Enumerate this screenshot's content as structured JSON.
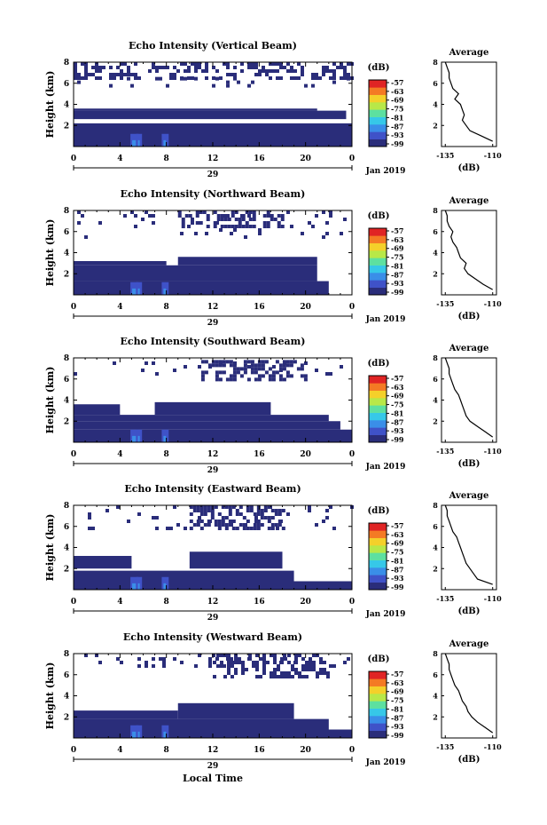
{
  "figure": {
    "xlabel": "Local Time",
    "date_label": "29",
    "month_label": "Jan 2019",
    "x_ticks": [
      "0",
      "4",
      "8",
      "12",
      "16",
      "20",
      "0"
    ],
    "y_ticks": [
      "2",
      "4",
      "6",
      "8"
    ],
    "ylabel": "Height (km)",
    "colorbar_unit": "(dB)",
    "colorbar_ticks": [
      "-57",
      "-63",
      "-69",
      "-75",
      "-81",
      "-87",
      "-93",
      "-99"
    ],
    "average_title": "Average",
    "average_xlabel": "(dB)",
    "average_x_ticks": [
      "-135",
      "-110"
    ],
    "average_y_ticks": [
      "2",
      "4",
      "6",
      "8"
    ],
    "colormap": [
      "#2a2d7a",
      "#3f52c8",
      "#3a8ee8",
      "#36c8e8",
      "#5de0a0",
      "#b8e848",
      "#f4d02a",
      "#f47a24",
      "#e02424"
    ]
  },
  "chart_data": [
    {
      "type": "heatmap",
      "title": "Echo Intensity (Vertical Beam)",
      "x_range_hours": [
        0,
        24
      ],
      "ylim_km": [
        0,
        8
      ],
      "clim_db": [
        -99,
        -57
      ],
      "layers": [
        {
          "kind": "fill",
          "x": [
            0,
            24
          ],
          "y": [
            0,
            1.6
          ],
          "db": -97
        },
        {
          "kind": "fill",
          "x": [
            0,
            24
          ],
          "y": [
            1.6,
            2.2
          ],
          "db": -99
        },
        {
          "kind": "fill",
          "x": [
            0,
            23.5
          ],
          "y": [
            2.6,
            3.4
          ],
          "db": -99
        },
        {
          "kind": "fill",
          "x": [
            0,
            21
          ],
          "y": [
            3.4,
            3.6
          ],
          "db": -99
        },
        {
          "kind": "speckle",
          "x": [
            0,
            24
          ],
          "y": [
            6.6,
            8.0
          ],
          "density": 0.42
        },
        {
          "kind": "speckle",
          "x": [
            0,
            24
          ],
          "y": [
            5.6,
            6.6
          ],
          "density": 0.1
        }
      ],
      "profile": {
        "title": "Average",
        "height_km": [
          0.5,
          1.0,
          1.5,
          2.0,
          2.5,
          3.0,
          3.5,
          4.0,
          4.5,
          5.0,
          5.5,
          6.0,
          6.5,
          7.0,
          7.5,
          8.0
        ],
        "db": [
          -110,
          -116,
          -122,
          -124,
          -126,
          -125,
          -126,
          -127,
          -130,
          -128,
          -131,
          -132,
          -133,
          -133,
          -134,
          -135
        ],
        "xlim_db": [
          -137,
          -108
        ]
      }
    },
    {
      "type": "heatmap",
      "title": "Echo Intensity (Northward Beam)",
      "x_range_hours": [
        0,
        24
      ],
      "ylim_km": [
        0,
        8
      ],
      "clim_db": [
        -99,
        -57
      ],
      "layers": [
        {
          "kind": "fill",
          "x": [
            0,
            22
          ],
          "y": [
            0,
            1.3
          ],
          "db": -97
        },
        {
          "kind": "fill",
          "x": [
            0,
            21
          ],
          "y": [
            1.3,
            2.8
          ],
          "db": -99
        },
        {
          "kind": "fill",
          "x": [
            0,
            8
          ],
          "y": [
            2.8,
            3.2
          ],
          "db": -99
        },
        {
          "kind": "fill",
          "x": [
            9,
            21
          ],
          "y": [
            2.8,
            3.6
          ],
          "db": -99
        },
        {
          "kind": "speckle",
          "x": [
            9,
            18
          ],
          "y": [
            6.4,
            8.0
          ],
          "density": 0.45
        },
        {
          "kind": "speckle",
          "x": [
            0,
            24
          ],
          "y": [
            5.4,
            8.0
          ],
          "density": 0.05
        }
      ],
      "profile": {
        "title": "Average",
        "height_km": [
          0.5,
          1.0,
          1.5,
          2.0,
          2.5,
          3.0,
          3.5,
          4.0,
          4.5,
          5.0,
          5.5,
          6.0,
          6.5,
          7.0,
          7.5,
          8.0
        ],
        "db": [
          -110,
          -115,
          -119,
          -123,
          -125,
          -124,
          -127,
          -128,
          -129,
          -131,
          -132,
          -131,
          -133,
          -134,
          -134,
          -135
        ],
        "xlim_db": [
          -137,
          -108
        ]
      }
    },
    {
      "type": "heatmap",
      "title": "Echo Intensity (Southward Beam)",
      "x_range_hours": [
        0,
        24
      ],
      "ylim_km": [
        0,
        8
      ],
      "clim_db": [
        -99,
        -57
      ],
      "layers": [
        {
          "kind": "fill",
          "x": [
            0,
            24
          ],
          "y": [
            0,
            1.2
          ],
          "db": -97
        },
        {
          "kind": "fill",
          "x": [
            0,
            23
          ],
          "y": [
            1.2,
            2.0
          ],
          "db": -99
        },
        {
          "kind": "fill",
          "x": [
            0,
            22
          ],
          "y": [
            2.0,
            2.6
          ],
          "db": -99
        },
        {
          "kind": "fill",
          "x": [
            0,
            4
          ],
          "y": [
            2.6,
            3.6
          ],
          "db": -99
        },
        {
          "kind": "fill",
          "x": [
            7,
            17
          ],
          "y": [
            2.6,
            3.8
          ],
          "db": -99
        },
        {
          "kind": "speckle",
          "x": [
            11,
            20
          ],
          "y": [
            5.8,
            7.8
          ],
          "density": 0.45
        },
        {
          "kind": "speckle",
          "x": [
            0,
            24
          ],
          "y": [
            6.6,
            8.0
          ],
          "density": 0.07
        }
      ],
      "profile": {
        "title": "Average",
        "height_km": [
          0.5,
          1.0,
          1.5,
          2.0,
          2.5,
          3.0,
          3.5,
          4.0,
          4.5,
          5.0,
          5.5,
          6.0,
          6.5,
          7.0,
          7.5,
          8.0
        ],
        "db": [
          -110,
          -114,
          -118,
          -122,
          -124,
          -125,
          -126,
          -127,
          -128,
          -130,
          -131,
          -132,
          -133,
          -133,
          -134,
          -135
        ],
        "xlim_db": [
          -137,
          -108
        ]
      }
    },
    {
      "type": "heatmap",
      "title": "Echo Intensity (Eastward Beam)",
      "x_range_hours": [
        0,
        24
      ],
      "ylim_km": [
        0,
        8
      ],
      "clim_db": [
        -99,
        -57
      ],
      "layers": [
        {
          "kind": "fill",
          "x": [
            0,
            24
          ],
          "y": [
            0,
            0.8
          ],
          "db": -97
        },
        {
          "kind": "fill",
          "x": [
            0,
            19
          ],
          "y": [
            0.8,
            1.8
          ],
          "db": -99
        },
        {
          "kind": "fill",
          "x": [
            0,
            5
          ],
          "y": [
            2.0,
            3.2
          ],
          "db": -99
        },
        {
          "kind": "fill",
          "x": [
            10,
            18
          ],
          "y": [
            2.0,
            3.6
          ],
          "db": -99
        },
        {
          "kind": "speckle",
          "x": [
            10,
            18
          ],
          "y": [
            5.8,
            8.0
          ],
          "density": 0.5
        },
        {
          "kind": "speckle",
          "x": [
            0,
            24
          ],
          "y": [
            5.6,
            8.0
          ],
          "density": 0.06
        }
      ],
      "profile": {
        "title": "Average",
        "height_km": [
          0.5,
          1.0,
          1.5,
          2.0,
          2.5,
          3.0,
          3.5,
          4.0,
          4.5,
          5.0,
          5.5,
          6.0,
          6.5,
          7.0,
          7.5,
          8.0
        ],
        "db": [
          -110,
          -118,
          -120,
          -122,
          -124,
          -125,
          -126,
          -127,
          -128,
          -129,
          -131,
          -132,
          -133,
          -134,
          -134,
          -135
        ],
        "xlim_db": [
          -137,
          -108
        ]
      }
    },
    {
      "type": "heatmap",
      "title": "Echo Intensity (Westward Beam)",
      "x_range_hours": [
        0,
        24
      ],
      "ylim_km": [
        0,
        8
      ],
      "clim_db": [
        -99,
        -57
      ],
      "layers": [
        {
          "kind": "fill",
          "x": [
            0,
            24
          ],
          "y": [
            0,
            0.8
          ],
          "db": -97
        },
        {
          "kind": "fill",
          "x": [
            0,
            22
          ],
          "y": [
            0.8,
            1.8
          ],
          "db": -99
        },
        {
          "kind": "fill",
          "x": [
            0,
            9
          ],
          "y": [
            1.8,
            2.6
          ],
          "db": -99
        },
        {
          "kind": "fill",
          "x": [
            9,
            19
          ],
          "y": [
            1.8,
            3.3
          ],
          "db": -99
        },
        {
          "kind": "speckle",
          "x": [
            12,
            22
          ],
          "y": [
            5.6,
            8.0
          ],
          "density": 0.45
        },
        {
          "kind": "speckle",
          "x": [
            0,
            24
          ],
          "y": [
            6.8,
            8.0
          ],
          "density": 0.08
        }
      ],
      "profile": {
        "title": "Average",
        "height_km": [
          0.5,
          1.0,
          1.5,
          2.0,
          2.5,
          3.0,
          3.5,
          4.0,
          4.5,
          5.0,
          5.5,
          6.0,
          6.5,
          7.0,
          7.5,
          8.0
        ],
        "db": [
          -110,
          -114,
          -118,
          -121,
          -123,
          -124,
          -126,
          -127,
          -128,
          -130,
          -131,
          -132,
          -133,
          -133,
          -134,
          -135
        ],
        "xlim_db": [
          -137,
          -108
        ]
      }
    }
  ]
}
